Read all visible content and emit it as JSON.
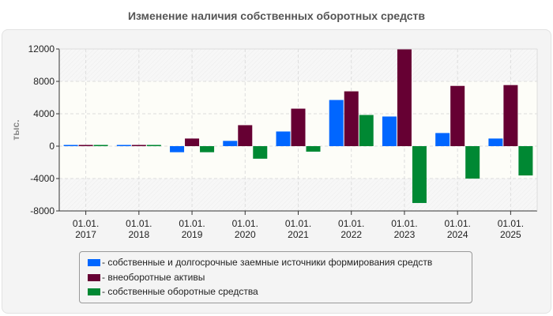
{
  "chart_data": {
    "type": "bar",
    "title": "Изменение наличия собственных оборотных средств",
    "ylabel": "тыс.",
    "xlabel": "",
    "ylim": [
      -8000,
      12000
    ],
    "yticks": [
      "12000",
      "8000",
      "4000",
      "0",
      "-4000",
      "-8000"
    ],
    "ytick_values": [
      12000,
      8000,
      4000,
      0,
      -4000,
      -8000
    ],
    "categories": [
      {
        "line1": "01.01.",
        "line2": "2017"
      },
      {
        "line1": "01.01.",
        "line2": "2018"
      },
      {
        "line1": "01.01.",
        "line2": "2019"
      },
      {
        "line1": "01.01.",
        "line2": "2020"
      },
      {
        "line1": "01.01.",
        "line2": "2021"
      },
      {
        "line1": "01.01.",
        "line2": "2022"
      },
      {
        "line1": "01.01.",
        "line2": "2023"
      },
      {
        "line1": "01.01.",
        "line2": "2024"
      },
      {
        "line1": "01.01.",
        "line2": "2025"
      }
    ],
    "series": [
      {
        "name": "- собственные и долгосрочные заемные источники формирования средств",
        "color": "#0066ff",
        "values": [
          150,
          150,
          -750,
          650,
          1810,
          5700,
          3660,
          1620,
          940
        ]
      },
      {
        "name": "- внеоборотные активы",
        "color": "#660033",
        "values": [
          150,
          150,
          940,
          2590,
          4630,
          6770,
          12000,
          7440,
          7540
        ]
      },
      {
        "name": "- собственные оборотные средства",
        "color": "#008833",
        "values": [
          150,
          150,
          -750,
          -1550,
          -680,
          3850,
          -7020,
          -4010,
          -3620
        ]
      }
    ],
    "grid": true,
    "legend_position": "bottom"
  }
}
